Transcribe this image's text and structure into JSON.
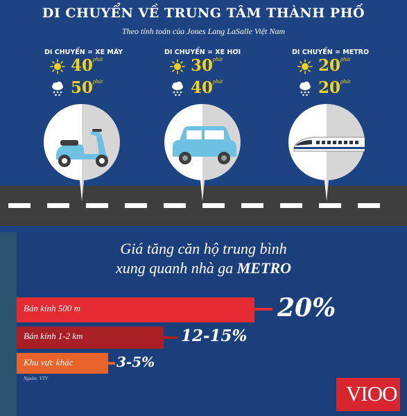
{
  "header": {
    "title": "DI CHUYỂN VỀ TRUNG TÂM THÀNH PHỐ",
    "subtitle": "Theo tính toán của Jones Lang LaSalle Việt Nam"
  },
  "modes": [
    {
      "label": "DI CHUYỂN = XE MÁY",
      "sunny_time": "40",
      "rainy_time": "50",
      "unit": "phút",
      "vehicle": "scooter-icon"
    },
    {
      "label": "DI CHUYỂN = XE HƠI",
      "sunny_time": "30",
      "rainy_time": "40",
      "unit": "phút",
      "vehicle": "car-icon"
    },
    {
      "label": "DI CHUYỂN = METRO",
      "sunny_time": "20",
      "rainy_time": "20",
      "unit": "phút",
      "vehicle": "train-icon"
    }
  ],
  "colors": {
    "background": "#1d4382",
    "time_yellow": "#f2d21c",
    "road": "#3e3e3e",
    "bar_500m": "#e42b32",
    "bar_1_2km": "#a91f26",
    "bar_other": "#e8622c",
    "logo": "#d8262e"
  },
  "price_section": {
    "heading_line1": "Giá tăng căn hộ trung bình",
    "heading_line2_prefix": "xung quanh nhà ga ",
    "heading_line2_bold": "METRO",
    "bars": [
      {
        "label": "Bán kính 500 m",
        "value": "20%"
      },
      {
        "label": "Bán kính 1-2 km",
        "value": "12-15%"
      },
      {
        "label": "Khu vực khác",
        "value": "3-5%"
      }
    ],
    "source": "Nguồn: VTV"
  },
  "logo": {
    "text": "VIOO"
  }
}
